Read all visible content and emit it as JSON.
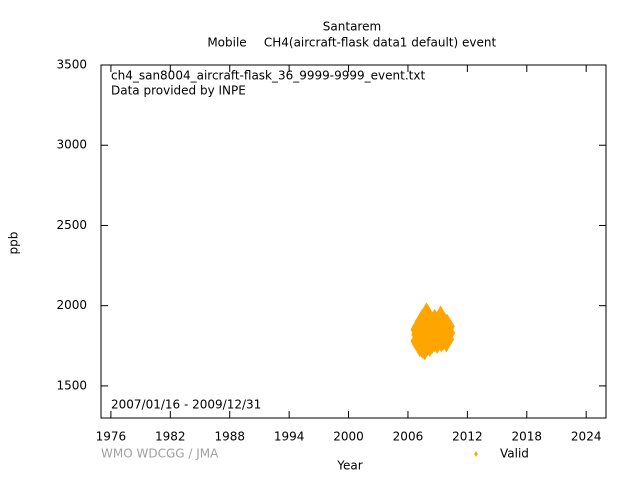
{
  "chart_data": {
    "type": "scatter",
    "title": "Santarem",
    "subtitle": [
      "Mobile",
      "CH4(aircraft-flask data1 default) event"
    ],
    "annotations": [
      "ch4_san8004_aircraft-flask_36_9999-9999_event.txt",
      "Data provided by INPE",
      "2007/01/16 - 2009/12/31"
    ],
    "credit": "WMO WDCGG / JMA",
    "x_label": "Year",
    "y_label": "ppb",
    "xlim": [
      1975,
      2026
    ],
    "ylim": [
      1300,
      3500
    ],
    "xticks": [
      1976,
      1982,
      1988,
      1994,
      2000,
      2006,
      2012,
      2018,
      2024
    ],
    "yticks": [
      1500,
      2000,
      2500,
      3000,
      3500
    ],
    "legend": "bottom",
    "series": [
      {
        "name": "Valid",
        "color": "#ffa500",
        "x": [
          2007.04,
          2007.04,
          2007.12,
          2007.2,
          2007.2,
          2007.3,
          2007.38,
          2007.45,
          2007.45,
          2007.55,
          2007.62,
          2007.7,
          2007.7,
          2007.8,
          2007.88,
          2007.95,
          2007.95,
          2008.05,
          2008.12,
          2008.2,
          2008.2,
          2008.3,
          2008.38,
          2008.45,
          2008.55,
          2008.62,
          2008.7,
          2008.7,
          2008.8,
          2008.88,
          2008.95,
          2009.05,
          2009.12,
          2009.2,
          2009.3,
          2009.38,
          2009.45,
          2009.55,
          2009.62,
          2009.7,
          2009.8,
          2009.88,
          2009.95,
          2009.99
        ],
        "values": [
          1780,
          1850,
          1820,
          1760,
          1870,
          1800,
          1840,
          1750,
          1900,
          1830,
          1790,
          1870,
          1740,
          1810,
          1940,
          1780,
          1860,
          1820,
          1800,
          1760,
          1890,
          1840,
          1810,
          1780,
          1860,
          1830,
          1790,
          1900,
          1820,
          1850,
          1780,
          1870,
          1810,
          1840,
          1920,
          1790,
          1860,
          1800,
          1880,
          1820,
          1850,
          1790,
          1870,
          1830
        ]
      }
    ]
  }
}
